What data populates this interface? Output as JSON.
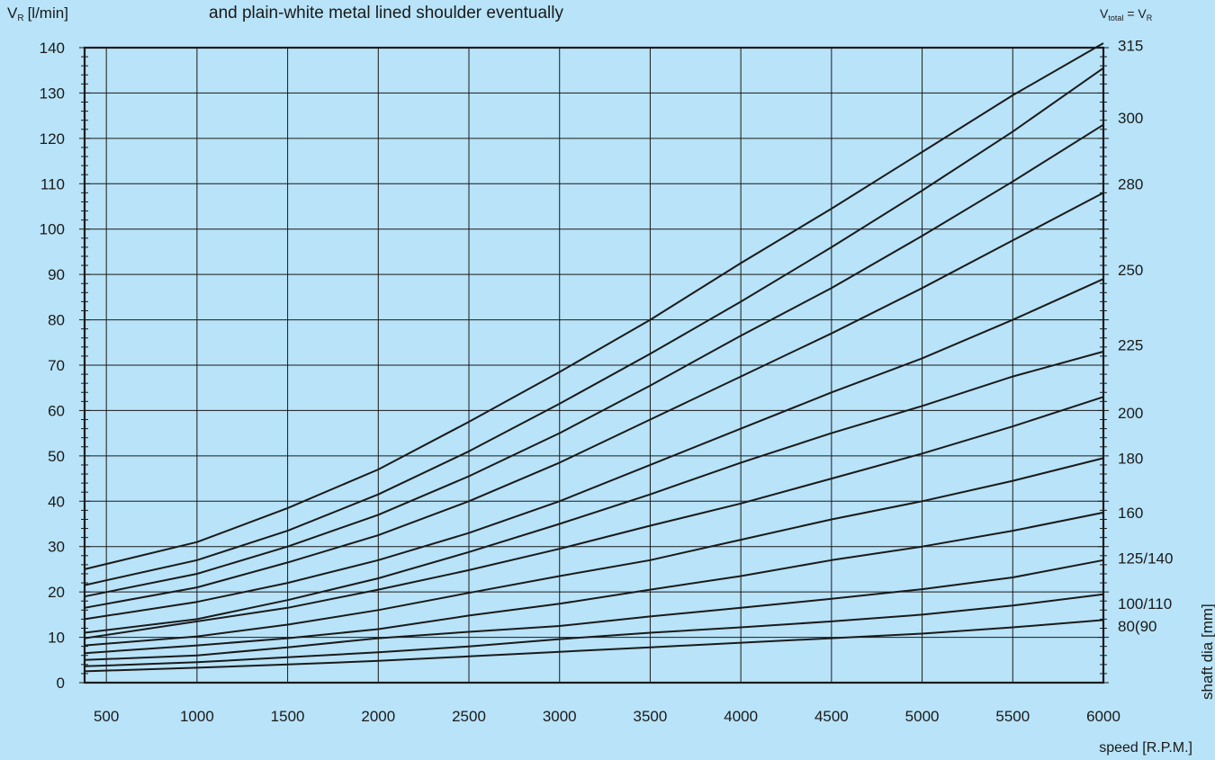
{
  "chart_data": {
    "type": "line",
    "title": "and plain-white metal lined shoulder eventually",
    "top_left_label": "V",
    "top_left_label_sub": "R",
    "top_left_label_unit": "[l/min]",
    "top_right_label_v": "V",
    "top_right_label_sub": "total",
    "top_right_label_eq": "= V",
    "top_right_label_sub2": "R",
    "xlabel": "speed [R.P.M.]",
    "right_axis_label": "shaft dia [mm]",
    "xlim": [
      380,
      6000
    ],
    "ylim": [
      0,
      140
    ],
    "x_ticks": [
      500,
      1000,
      1500,
      2000,
      2500,
      3000,
      3500,
      4000,
      4500,
      5000,
      5500,
      6000
    ],
    "x_tick_labels": [
      "500",
      "1000",
      "1500",
      "2000",
      "2500",
      "3000",
      "3500",
      "4000",
      "4500",
      "5000",
      "5500",
      "6000"
    ],
    "y_ticks": [
      0,
      10,
      20,
      30,
      40,
      50,
      60,
      70,
      80,
      90,
      100,
      110,
      120,
      130,
      140
    ],
    "y_tick_labels": [
      "0",
      "10",
      "20",
      "30",
      "40",
      "50",
      "60",
      "70",
      "80",
      "90",
      "100",
      "110",
      "120",
      "130",
      "140"
    ],
    "grid": true,
    "line_color": "#1a1a1a",
    "background": "#b8e3f8",
    "series": [
      {
        "label_values": [],
        "x": [
          380,
          1000,
          1500,
          2000,
          2500,
          3000,
          3500,
          4000,
          4500,
          5000,
          5500,
          6000
        ],
        "values": [
          2.5,
          3.3,
          4.0,
          4.8,
          5.8,
          6.8,
          7.8,
          8.8,
          9.8,
          10.8,
          12.2,
          13.8
        ]
      },
      {
        "label_values": [],
        "x": [
          380,
          1000,
          1500,
          2000,
          2500,
          3000,
          3500,
          4000,
          4500,
          5000,
          5500,
          6000
        ],
        "values": [
          3.6,
          4.5,
          5.6,
          6.7,
          8.0,
          9.6,
          11.0,
          12.2,
          13.5,
          15.0,
          17.0,
          19.5
        ]
      },
      {
        "label_values": [],
        "x": [
          380,
          1000,
          1500,
          2000,
          2500,
          3000,
          3500,
          4000,
          4500,
          5000,
          5500,
          6000
        ],
        "values": [
          5.0,
          6.0,
          7.8,
          9.8,
          11.2,
          12.5,
          14.6,
          16.5,
          18.5,
          20.6,
          23.2,
          27.0
        ]
      },
      {
        "label_values": [],
        "x": [
          380,
          1000,
          1500,
          2000,
          2500,
          3000,
          3500,
          4000,
          4500,
          5000,
          5500,
          6000
        ],
        "values": [
          6.5,
          8.2,
          9.8,
          11.8,
          14.8,
          17.4,
          20.5,
          23.5,
          27.0,
          30.0,
          33.5,
          37.5
        ]
      },
      {
        "label_values": [],
        "x": [
          380,
          1000,
          1500,
          2000,
          2500,
          3000,
          3500,
          4000,
          4500,
          5000,
          5500,
          6000
        ],
        "values": [
          8.2,
          10.2,
          12.8,
          16.0,
          19.8,
          23.5,
          27.0,
          31.5,
          36.0,
          40.0,
          44.5,
          49.5
        ]
      },
      {
        "label_values": [],
        "x": [
          380,
          1000,
          1500,
          2000,
          2500,
          3000,
          3500,
          4000,
          4500,
          5000,
          5500,
          6000
        ],
        "values": [
          9.8,
          13.5,
          16.5,
          20.5,
          24.8,
          29.5,
          34.6,
          39.5,
          45.0,
          50.5,
          56.5,
          63.0
        ]
      },
      {
        "label_values": [],
        "x": [
          380,
          1000,
          1500,
          2000,
          2500,
          3000,
          3500,
          4000,
          4500,
          5000,
          5500,
          6000
        ],
        "values": [
          11.0,
          14.0,
          18.2,
          23.0,
          28.8,
          35.0,
          41.5,
          48.5,
          55.0,
          61.0,
          67.5,
          73.0
        ]
      },
      {
        "label_values": [],
        "x": [
          380,
          1000,
          1500,
          2000,
          2500,
          3000,
          3500,
          4000,
          4500,
          5000,
          5500,
          6000
        ],
        "values": [
          14.0,
          17.8,
          22.0,
          27.0,
          33.0,
          40.0,
          48.0,
          56.0,
          64.0,
          71.5,
          80.0,
          89.0
        ]
      },
      {
        "label_values": [],
        "x": [
          380,
          1000,
          1500,
          2000,
          2500,
          3000,
          3500,
          4000,
          4500,
          5000,
          5500,
          6000
        ],
        "values": [
          16.5,
          21.0,
          26.5,
          32.5,
          40.0,
          48.5,
          58.0,
          67.5,
          77.0,
          87.0,
          97.5,
          108.0
        ]
      },
      {
        "label_values": [],
        "x": [
          380,
          1000,
          1500,
          2000,
          2500,
          3000,
          3500,
          4000,
          4500,
          5000,
          5500,
          6000
        ],
        "values": [
          19.0,
          24.0,
          30.0,
          37.0,
          45.5,
          55.0,
          65.5,
          76.5,
          87.0,
          98.5,
          110.5,
          123.0
        ]
      },
      {
        "label_values": [],
        "x": [
          380,
          1000,
          1500,
          2000,
          2500,
          3000,
          3500,
          4000,
          4500,
          5000,
          5500,
          6000
        ],
        "values": [
          21.5,
          27.0,
          33.5,
          41.5,
          51.0,
          61.5,
          72.5,
          84.0,
          96.0,
          108.5,
          121.5,
          135.5
        ]
      },
      {
        "label_values": [],
        "x": [
          380,
          1000,
          1500,
          2000,
          2500,
          3000,
          3500,
          4000,
          4500,
          5000,
          5500,
          6000
        ],
        "values": [
          25.0,
          31.0,
          38.5,
          47.0,
          57.5,
          68.5,
          80.0,
          92.5,
          104.5,
          117.0,
          129.5,
          141.0
        ]
      }
    ],
    "right_labels": [
      {
        "text": "315",
        "y": 140.5
      },
      {
        "text": "300",
        "y": 124.5
      },
      {
        "text": "280",
        "y": 110.0
      },
      {
        "text": "250",
        "y": 91.0
      },
      {
        "text": "225",
        "y": 74.5
      },
      {
        "text": "200",
        "y": 59.5
      },
      {
        "text": "180",
        "y": 49.5
      },
      {
        "text": "160",
        "y": 37.5
      },
      {
        "text": "125/140",
        "y": 27.5
      },
      {
        "text": "100/110",
        "y": 17.5
      },
      {
        "text": "80(90",
        "y": 12.5
      }
    ]
  }
}
